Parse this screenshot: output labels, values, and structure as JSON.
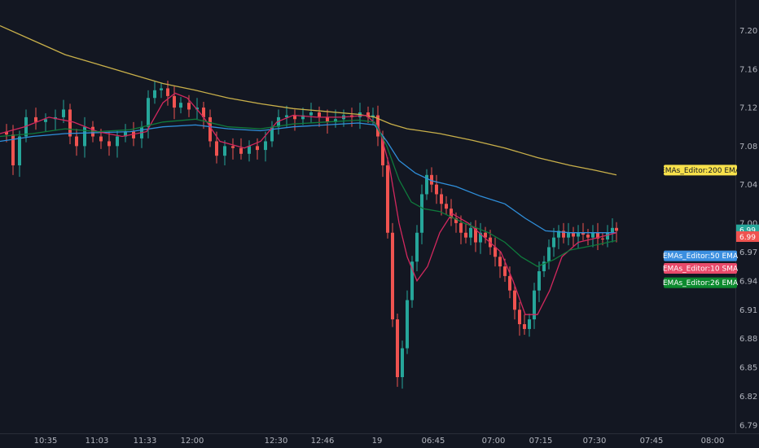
{
  "chart_data": {
    "type": "candlestick",
    "x_labels": [
      "10:35",
      "11:03",
      "11:33",
      "12:00",
      "12:30",
      "12:46",
      "19",
      "06:45",
      "07:00",
      "07:15",
      "07:30",
      "07:45",
      "08:00"
    ],
    "y_ticks": [
      7.2,
      7.16,
      7.12,
      7.08,
      7.04,
      7.0,
      6.97,
      6.94,
      6.91,
      6.88,
      6.85,
      6.82,
      6.79
    ],
    "y_range": [
      6.785,
      7.225
    ],
    "price_labels": [
      {
        "value": "6.99",
        "price": 6.993,
        "color": "#26a69a"
      },
      {
        "value": "6.99",
        "price": 6.986,
        "color": "#ef5350"
      }
    ],
    "series": [
      {
        "name": "EMAs_Editor:200 EMA",
        "color": "#c9b04a",
        "label_bg": "#f7e14b",
        "label_fg": "#131722",
        "label_price": 7.055,
        "points": [
          [
            0,
            7.205
          ],
          [
            40,
            7.19
          ],
          [
            80,
            7.175
          ],
          [
            120,
            7.165
          ],
          [
            160,
            7.155
          ],
          [
            200,
            7.145
          ],
          [
            240,
            7.138
          ],
          [
            280,
            7.13
          ],
          [
            320,
            7.124
          ],
          [
            360,
            7.119
          ],
          [
            400,
            7.116
          ],
          [
            440,
            7.113
          ],
          [
            460,
            7.11
          ],
          [
            480,
            7.103
          ],
          [
            500,
            7.098
          ],
          [
            540,
            7.093
          ],
          [
            580,
            7.086
          ],
          [
            620,
            7.078
          ],
          [
            660,
            7.068
          ],
          [
            700,
            7.06
          ],
          [
            730,
            7.055
          ],
          [
            757,
            7.05
          ]
        ]
      },
      {
        "name": "EMAs_Editor:50 EMA",
        "color": "#2f8fdb",
        "label_bg": "#3b8fe0",
        "label_fg": "#ffffff",
        "label_price": 6.966,
        "points": [
          [
            0,
            7.085
          ],
          [
            40,
            7.09
          ],
          [
            80,
            7.093
          ],
          [
            120,
            7.094
          ],
          [
            160,
            7.095
          ],
          [
            200,
            7.1
          ],
          [
            240,
            7.102
          ],
          [
            280,
            7.098
          ],
          [
            320,
            7.096
          ],
          [
            360,
            7.1
          ],
          [
            400,
            7.102
          ],
          [
            440,
            7.104
          ],
          [
            460,
            7.102
          ],
          [
            475,
            7.085
          ],
          [
            490,
            7.065
          ],
          [
            510,
            7.052
          ],
          [
            530,
            7.044
          ],
          [
            560,
            7.038
          ],
          [
            590,
            7.028
          ],
          [
            620,
            7.02
          ],
          [
            645,
            7.005
          ],
          [
            670,
            6.992
          ],
          [
            700,
            6.99
          ],
          [
            730,
            6.99
          ],
          [
            757,
            6.99
          ]
        ]
      },
      {
        "name": "EMAs_Editor:10 SMA",
        "color": "#d2285e",
        "label_bg": "#e84a6a",
        "label_fg": "#ffffff",
        "label_price": 6.953,
        "points": [
          [
            0,
            7.093
          ],
          [
            30,
            7.1
          ],
          [
            60,
            7.11
          ],
          [
            90,
            7.105
          ],
          [
            120,
            7.095
          ],
          [
            150,
            7.09
          ],
          [
            180,
            7.095
          ],
          [
            200,
            7.125
          ],
          [
            215,
            7.135
          ],
          [
            230,
            7.13
          ],
          [
            250,
            7.11
          ],
          [
            270,
            7.085
          ],
          [
            300,
            7.078
          ],
          [
            320,
            7.085
          ],
          [
            340,
            7.105
          ],
          [
            360,
            7.112
          ],
          [
            390,
            7.11
          ],
          [
            420,
            7.11
          ],
          [
            450,
            7.112
          ],
          [
            465,
            7.1
          ],
          [
            478,
            7.06
          ],
          [
            490,
            7.0
          ],
          [
            500,
            6.965
          ],
          [
            512,
            6.94
          ],
          [
            525,
            6.955
          ],
          [
            540,
            6.99
          ],
          [
            555,
            7.01
          ],
          [
            575,
            7.0
          ],
          [
            595,
            6.985
          ],
          [
            615,
            6.97
          ],
          [
            630,
            6.94
          ],
          [
            645,
            6.905
          ],
          [
            660,
            6.905
          ],
          [
            675,
            6.93
          ],
          [
            690,
            6.965
          ],
          [
            710,
            6.98
          ],
          [
            730,
            6.984
          ],
          [
            757,
            6.99
          ]
        ]
      },
      {
        "name": "EMAs_Editor:26 EMA",
        "color": "#0f7a3c",
        "label_bg": "#0b8a2e",
        "label_fg": "#ffffff",
        "label_price": 6.938,
        "points": [
          [
            0,
            7.09
          ],
          [
            40,
            7.093
          ],
          [
            80,
            7.098
          ],
          [
            120,
            7.095
          ],
          [
            160,
            7.097
          ],
          [
            200,
            7.105
          ],
          [
            240,
            7.108
          ],
          [
            280,
            7.1
          ],
          [
            320,
            7.098
          ],
          [
            360,
            7.103
          ],
          [
            400,
            7.105
          ],
          [
            440,
            7.107
          ],
          [
            460,
            7.105
          ],
          [
            475,
            7.08
          ],
          [
            490,
            7.045
          ],
          [
            505,
            7.022
          ],
          [
            520,
            7.015
          ],
          [
            540,
            7.012
          ],
          [
            570,
            7.0
          ],
          [
            600,
            6.99
          ],
          [
            620,
            6.98
          ],
          [
            640,
            6.965
          ],
          [
            660,
            6.955
          ],
          [
            680,
            6.962
          ],
          [
            700,
            6.972
          ],
          [
            730,
            6.977
          ],
          [
            757,
            6.982
          ]
        ]
      }
    ],
    "grid": false,
    "up_color": "#26a69a",
    "down_color": "#ef5350"
  }
}
